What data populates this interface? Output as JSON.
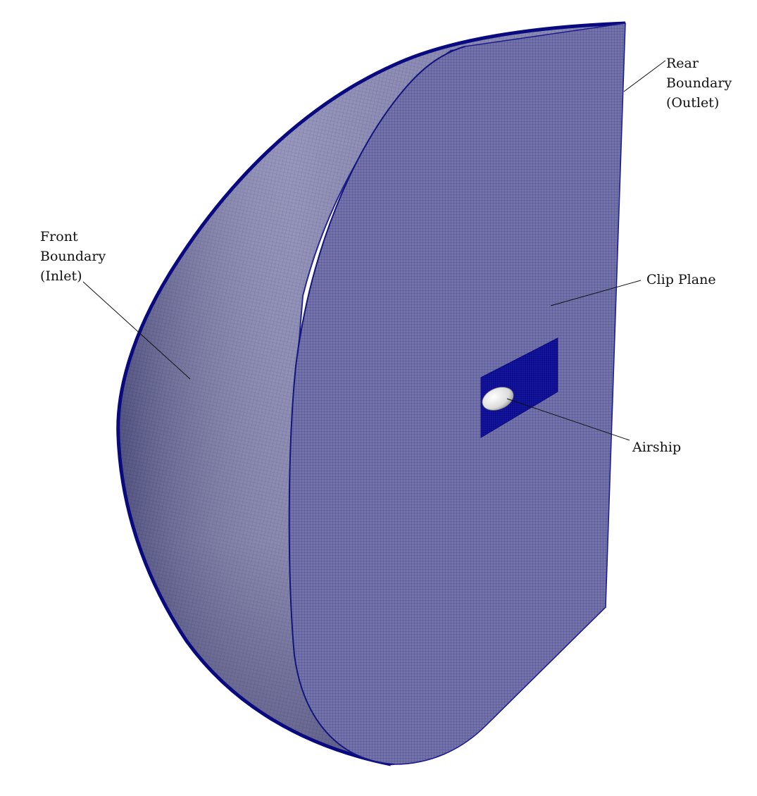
{
  "figure": {
    "labels": {
      "rear": [
        "Rear",
        "Boundary",
        "(Outlet)"
      ],
      "front": [
        "Front",
        "Boundary",
        "(Inlet)"
      ],
      "clip": "Clip Plane",
      "airship": "Airship"
    },
    "colors": {
      "mesh_line": "#1a1a8c",
      "face_fill": "#7373a6",
      "dome_light": "#9a9ab8",
      "refinement_box": "#0d0d96",
      "airship": "#e6e6e6",
      "leader": "#111111"
    }
  }
}
